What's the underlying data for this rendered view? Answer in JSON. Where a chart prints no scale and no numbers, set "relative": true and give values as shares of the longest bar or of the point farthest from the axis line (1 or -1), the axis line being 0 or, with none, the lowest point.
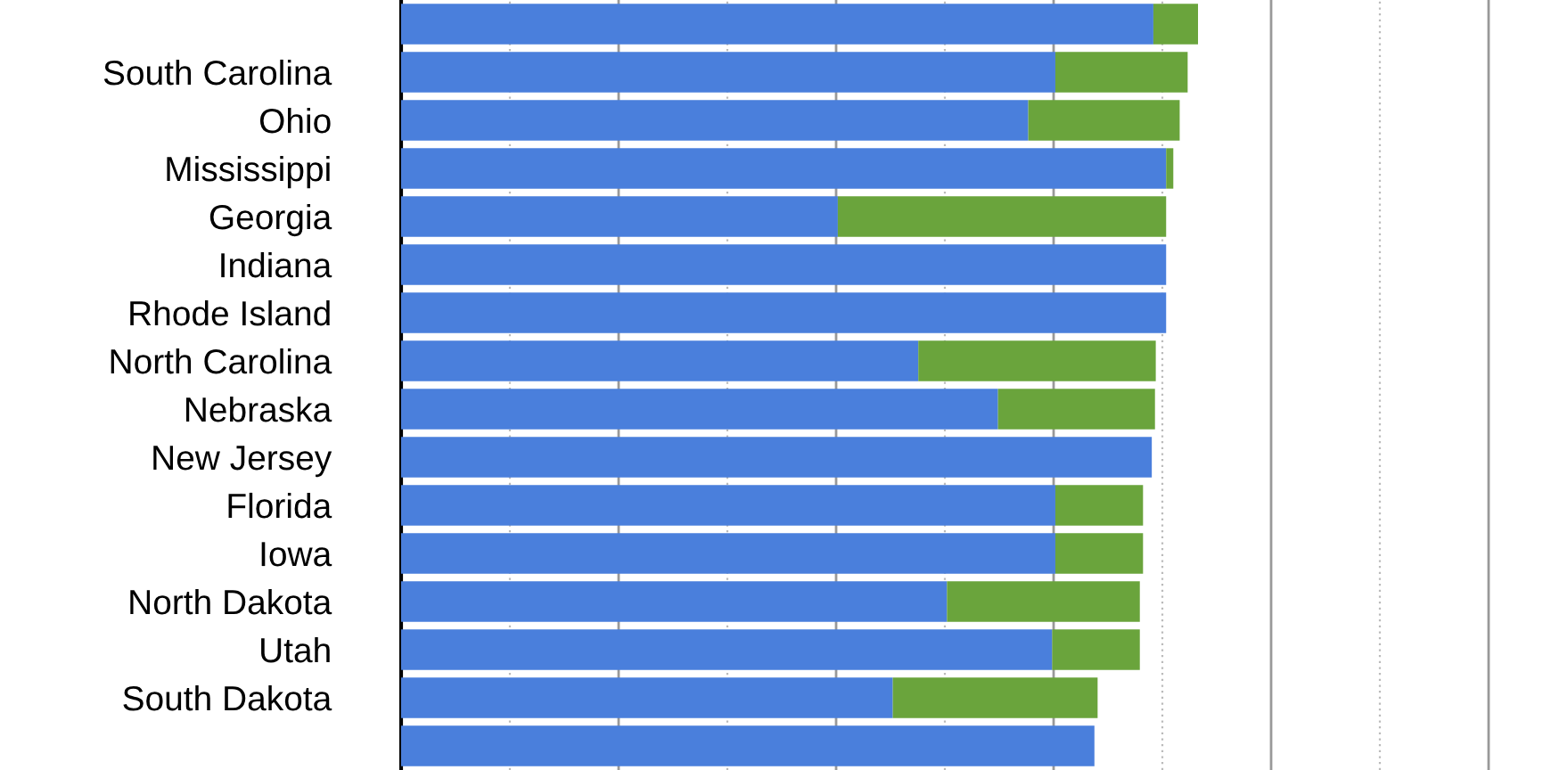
{
  "chart_data": {
    "type": "bar",
    "orientation": "horizontal",
    "stacked": true,
    "relative": true,
    "grid": "x",
    "legend": false,
    "categories": [
      null,
      "South Carolina",
      "Ohio",
      "Mississippi",
      "Georgia",
      "Indiana",
      "Rhode Island",
      "North Carolina",
      "Nebraska",
      "New Jersey",
      "Florida",
      "Iowa",
      "North Dakota",
      "Utah",
      "South Dakota",
      null
    ],
    "series": [
      {
        "color": "#4a7fdc",
        "values": [
          0.944,
          0.821,
          0.787,
          0.96,
          0.548,
          0.96,
          0.96,
          0.649,
          0.749,
          0.942,
          0.821,
          0.821,
          0.685,
          0.817,
          0.617,
          0.87
        ]
      },
      {
        "color": "#6aa43c",
        "values": [
          0.056,
          0.166,
          0.19,
          0.009,
          0.412,
          0,
          0,
          0.298,
          0.197,
          0,
          0.11,
          0.11,
          0.242,
          0.11,
          0.257,
          0
        ]
      }
    ]
  }
}
